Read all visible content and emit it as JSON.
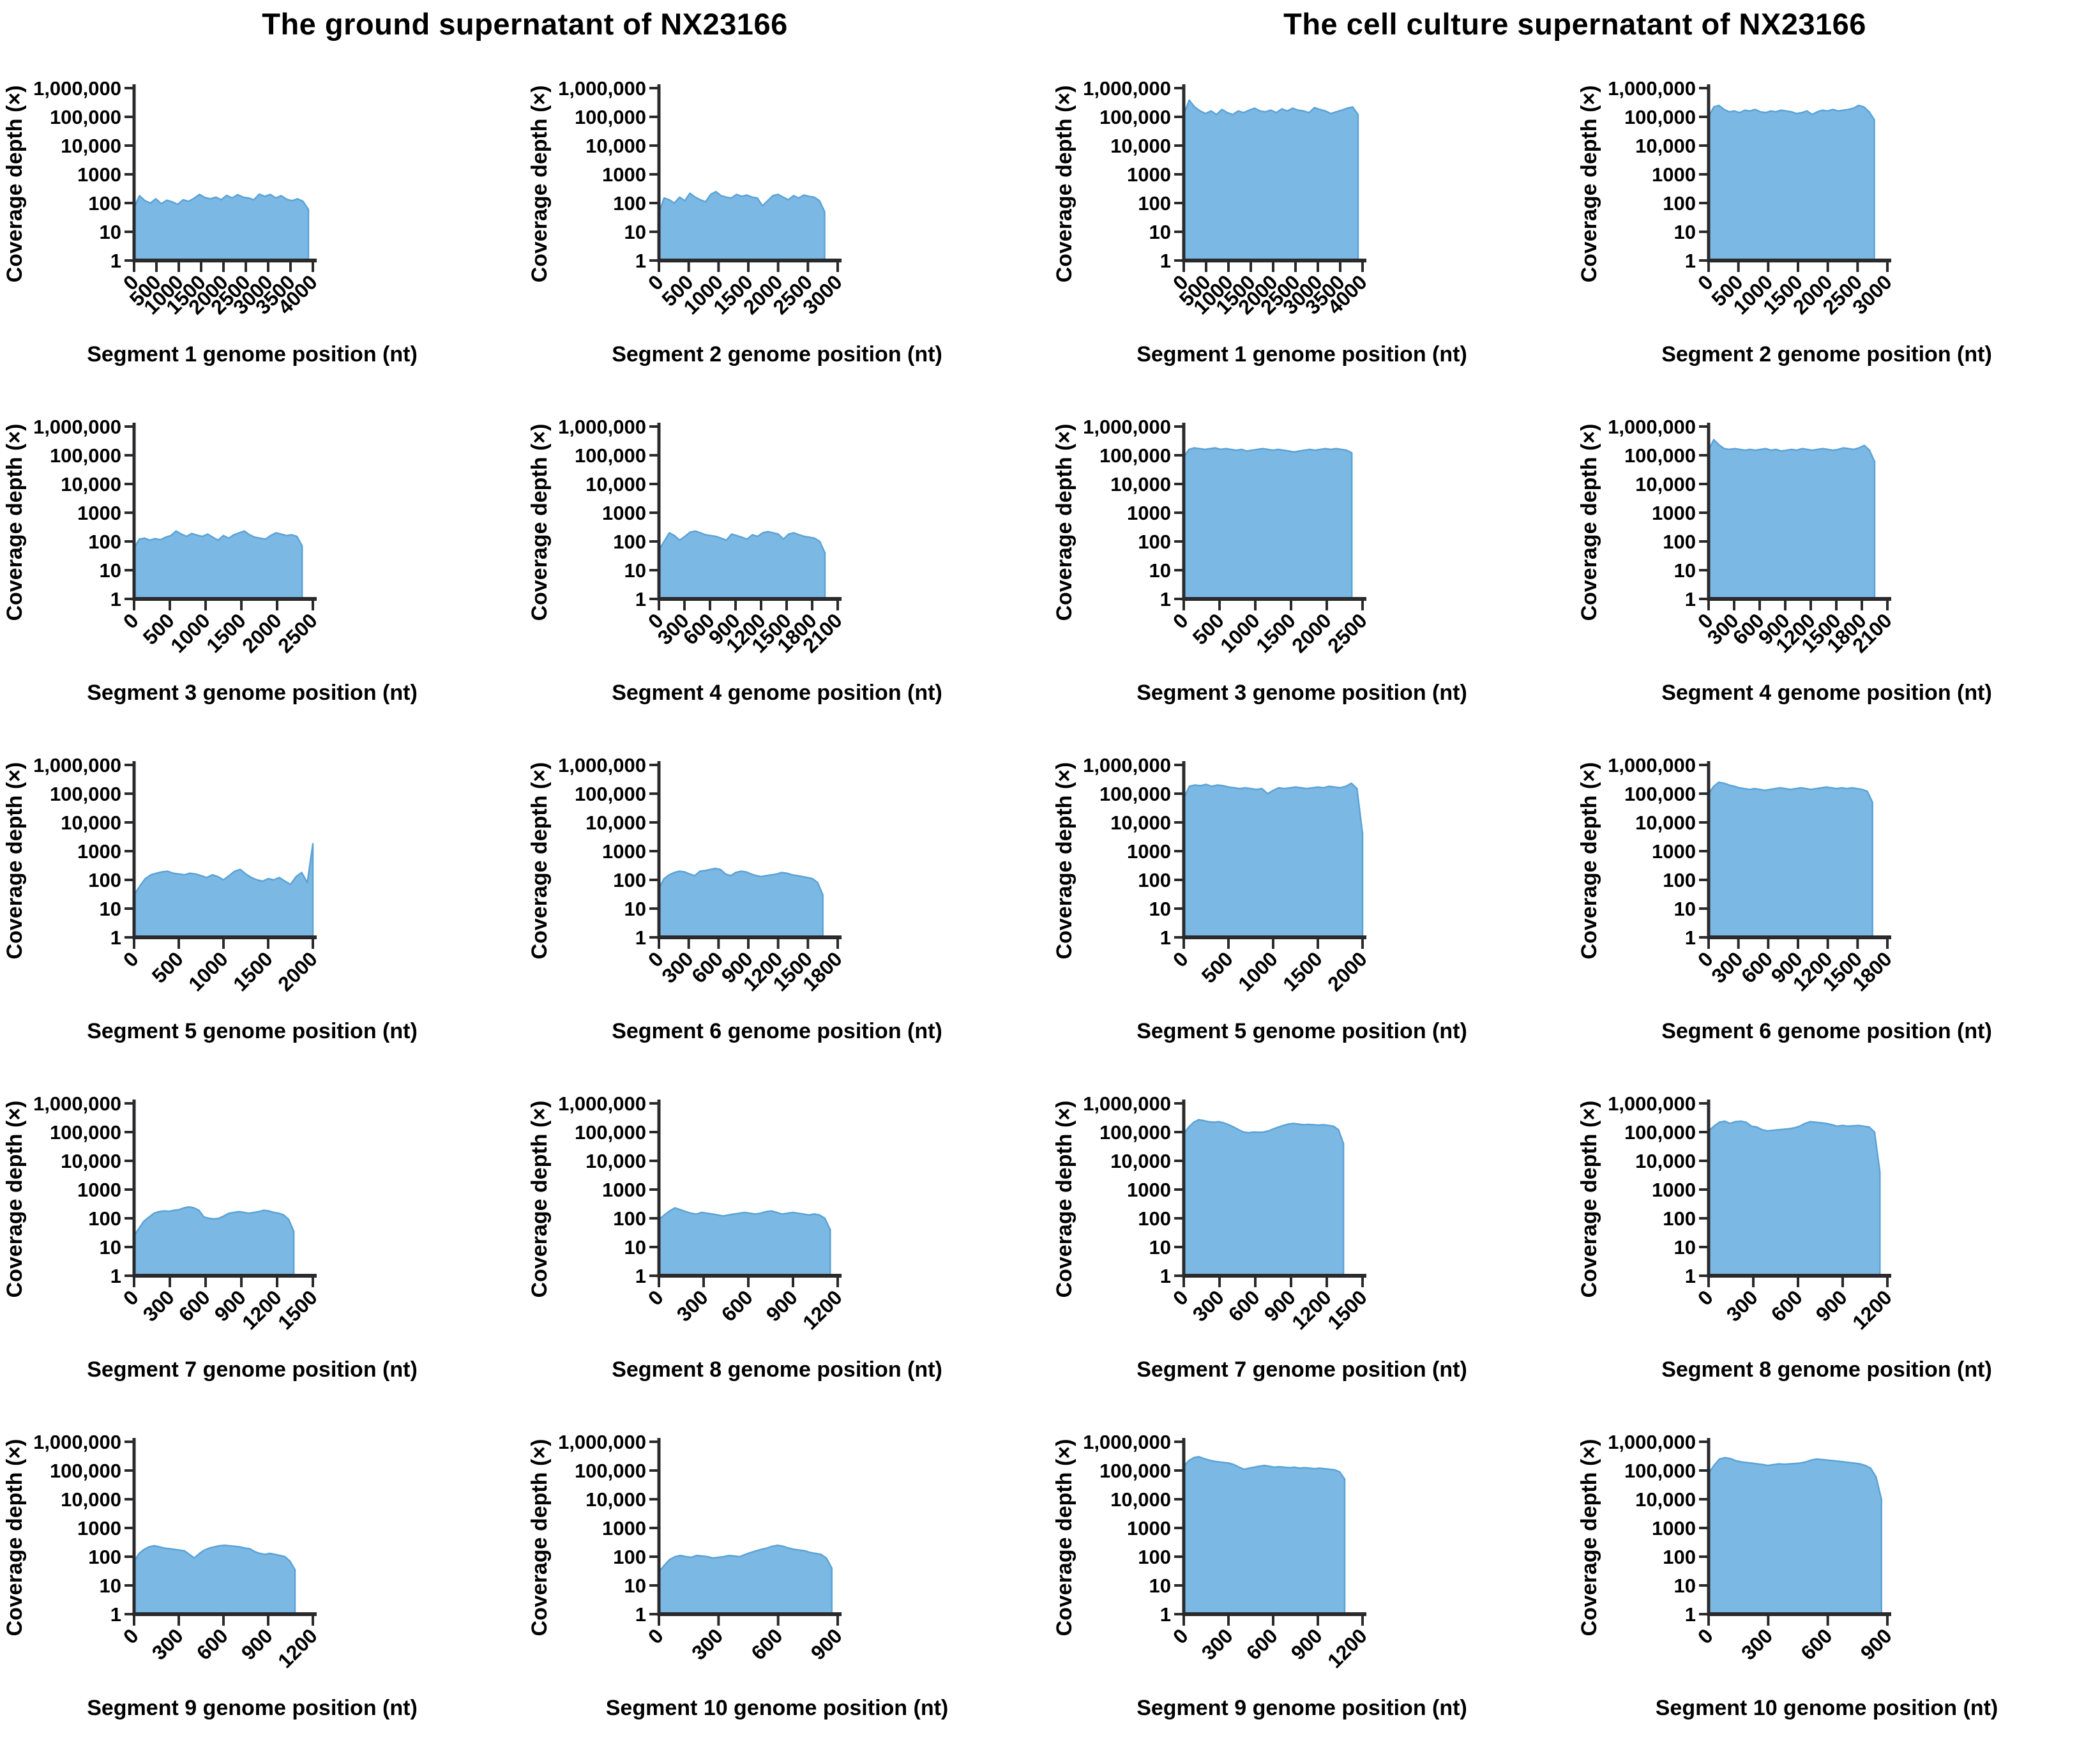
{
  "titles": {
    "left": "The ground supernatant of NX23166",
    "right": "The cell culture supernatant of NX23166"
  },
  "colors": {
    "area_fill": "#7cb8e4",
    "area_edge": "#5ba3d6",
    "axis": "#2a2a2c",
    "text": "#000000"
  },
  "y_axis": {
    "label": "Coverage depth (×)",
    "tick_labels": [
      "1,000,000",
      "100,000",
      "10,000",
      "1000",
      "100",
      "10",
      "1"
    ],
    "tick_values": [
      1000000,
      100000,
      10000,
      1000,
      100,
      10,
      1
    ],
    "scale": "log",
    "range": [
      1,
      1000000
    ]
  },
  "chart_data": [
    {
      "type": "area",
      "group": "ground",
      "segment": 1,
      "xlabel": "Segment 1 genome position (nt)",
      "xmax": 4000,
      "data_end": 3900,
      "xticks": [
        0,
        500,
        1000,
        1500,
        2000,
        2500,
        3000,
        3500,
        4000
      ],
      "values": [
        70,
        180,
        120,
        100,
        140,
        95,
        125,
        110,
        90,
        130,
        115,
        145,
        200,
        155,
        140,
        160,
        130,
        185,
        150,
        195,
        160,
        150,
        130,
        205,
        170,
        200,
        150,
        180,
        135,
        120,
        140,
        115,
        60
      ]
    },
    {
      "type": "area",
      "group": "ground",
      "segment": 2,
      "xlabel": "Segment 2 genome position (nt)",
      "xmax": 3000,
      "data_end": 2780,
      "xticks": [
        0,
        500,
        1000,
        1500,
        2000,
        2500,
        3000
      ],
      "values": [
        45,
        150,
        130,
        100,
        160,
        120,
        220,
        160,
        130,
        110,
        200,
        250,
        180,
        160,
        150,
        200,
        170,
        190,
        160,
        150,
        80,
        120,
        180,
        200,
        160,
        130,
        180,
        150,
        190,
        170,
        160,
        120,
        50
      ]
    },
    {
      "type": "area",
      "group": "cell_culture",
      "segment": 1,
      "xlabel": "Segment 1 genome position (nt)",
      "xmax": 4000,
      "data_end": 3900,
      "xticks": [
        0,
        500,
        1000,
        1500,
        2000,
        2500,
        3000,
        3500,
        4000
      ],
      "values": [
        120000,
        380000,
        220000,
        160000,
        130000,
        160000,
        120000,
        180000,
        140000,
        120000,
        160000,
        140000,
        170000,
        200000,
        160000,
        150000,
        170000,
        140000,
        190000,
        160000,
        200000,
        170000,
        160000,
        140000,
        210000,
        180000,
        160000,
        130000,
        150000,
        170000,
        200000,
        220000,
        120000
      ]
    },
    {
      "type": "area",
      "group": "cell_culture",
      "segment": 2,
      "xlabel": "Segment 2 genome position (nt)",
      "xmax": 3000,
      "data_end": 2780,
      "xticks": [
        0,
        500,
        1000,
        1500,
        2000,
        2500,
        3000
      ],
      "values": [
        100000,
        220000,
        250000,
        180000,
        150000,
        160000,
        140000,
        170000,
        160000,
        180000,
        150000,
        140000,
        160000,
        150000,
        170000,
        160000,
        150000,
        130000,
        140000,
        160000,
        120000,
        150000,
        170000,
        160000,
        180000,
        160000,
        170000,
        180000,
        200000,
        250000,
        220000,
        150000,
        80000
      ]
    },
    {
      "type": "area",
      "group": "ground",
      "segment": 3,
      "xlabel": "Segment 3 genome position (nt)",
      "xmax": 2500,
      "data_end": 2350,
      "xticks": [
        0,
        500,
        1000,
        1500,
        2000,
        2500
      ],
      "values": [
        60,
        120,
        130,
        110,
        125,
        115,
        140,
        160,
        230,
        180,
        150,
        190,
        165,
        150,
        180,
        140,
        110,
        160,
        130,
        170,
        200,
        230,
        170,
        140,
        130,
        120,
        160,
        200,
        180,
        160,
        170,
        150,
        70
      ]
    },
    {
      "type": "area",
      "group": "ground",
      "segment": 4,
      "xlabel": "Segment 4 genome position (nt)",
      "xmax": 2100,
      "data_end": 1950,
      "xticks": [
        0,
        300,
        600,
        900,
        1200,
        1500,
        1800,
        2100
      ],
      "values": [
        50,
        100,
        200,
        160,
        110,
        150,
        210,
        230,
        200,
        170,
        160,
        150,
        130,
        110,
        180,
        160,
        140,
        120,
        170,
        150,
        200,
        220,
        200,
        180,
        120,
        180,
        200,
        170,
        150,
        140,
        130,
        100,
        40
      ]
    },
    {
      "type": "area",
      "group": "cell_culture",
      "segment": 3,
      "xlabel": "Segment 3 genome position (nt)",
      "xmax": 2500,
      "data_end": 2350,
      "xticks": [
        0,
        500,
        1000,
        1500,
        2000,
        2500
      ],
      "values": [
        90000,
        160000,
        180000,
        170000,
        160000,
        170000,
        180000,
        160000,
        170000,
        160000,
        150000,
        160000,
        140000,
        150000,
        160000,
        170000,
        160000,
        150000,
        160000,
        150000,
        140000,
        130000,
        140000,
        150000,
        160000,
        150000,
        160000,
        170000,
        160000,
        170000,
        160000,
        150000,
        120000
      ]
    },
    {
      "type": "area",
      "group": "cell_culture",
      "segment": 4,
      "xlabel": "Segment 4 genome position (nt)",
      "xmax": 2100,
      "data_end": 1950,
      "xticks": [
        0,
        300,
        600,
        900,
        1200,
        1500,
        1800,
        2100
      ],
      "values": [
        150000,
        350000,
        230000,
        170000,
        160000,
        170000,
        160000,
        150000,
        160000,
        150000,
        160000,
        170000,
        150000,
        160000,
        140000,
        150000,
        160000,
        150000,
        170000,
        160000,
        150000,
        160000,
        170000,
        160000,
        150000,
        160000,
        180000,
        170000,
        160000,
        180000,
        220000,
        150000,
        60000
      ]
    },
    {
      "type": "area",
      "group": "ground",
      "segment": 5,
      "xlabel": "Segment 5 genome position (nt)",
      "xmax": 2000,
      "data_end": 2000,
      "xticks": [
        0,
        500,
        1000,
        1500,
        2000
      ],
      "values": [
        30,
        60,
        110,
        150,
        170,
        190,
        200,
        170,
        160,
        150,
        170,
        160,
        140,
        120,
        150,
        130,
        100,
        140,
        200,
        230,
        160,
        120,
        100,
        90,
        110,
        100,
        120,
        90,
        70,
        130,
        180,
        80,
        1800
      ]
    },
    {
      "type": "area",
      "group": "ground",
      "segment": 6,
      "xlabel": "Segment 6 genome position (nt)",
      "xmax": 1800,
      "data_end": 1650,
      "xticks": [
        0,
        300,
        600,
        900,
        1200,
        1500,
        1800
      ],
      "values": [
        50,
        110,
        150,
        180,
        200,
        190,
        160,
        140,
        200,
        210,
        230,
        250,
        230,
        160,
        140,
        180,
        200,
        190,
        160,
        140,
        130,
        140,
        150,
        160,
        180,
        170,
        150,
        140,
        130,
        120,
        110,
        80,
        30
      ]
    },
    {
      "type": "area",
      "group": "cell_culture",
      "segment": 5,
      "xlabel": "Segment 5 genome position (nt)",
      "xmax": 2000,
      "data_end": 2000,
      "xticks": [
        0,
        500,
        1000,
        1500,
        2000
      ],
      "values": [
        70000,
        180000,
        200000,
        190000,
        210000,
        180000,
        200000,
        190000,
        170000,
        160000,
        150000,
        160000,
        150000,
        140000,
        150000,
        100000,
        130000,
        160000,
        150000,
        160000,
        170000,
        160000,
        150000,
        160000,
        170000,
        160000,
        180000,
        170000,
        160000,
        180000,
        230000,
        150000,
        4000
      ]
    },
    {
      "type": "area",
      "group": "cell_culture",
      "segment": 6,
      "xlabel": "Segment 6 genome position (nt)",
      "xmax": 1800,
      "data_end": 1650,
      "xticks": [
        0,
        300,
        600,
        900,
        1200,
        1500,
        1800
      ],
      "values": [
        100000,
        180000,
        250000,
        230000,
        200000,
        180000,
        160000,
        150000,
        140000,
        150000,
        140000,
        130000,
        140000,
        150000,
        160000,
        150000,
        140000,
        150000,
        160000,
        150000,
        140000,
        150000,
        160000,
        170000,
        160000,
        150000,
        160000,
        150000,
        160000,
        150000,
        140000,
        120000,
        50000
      ]
    },
    {
      "type": "area",
      "group": "ground",
      "segment": 7,
      "xlabel": "Segment 7 genome position (nt)",
      "xmax": 1500,
      "data_end": 1340,
      "xticks": [
        0,
        300,
        600,
        900,
        1200,
        1500
      ],
      "values": [
        25,
        45,
        80,
        110,
        150,
        170,
        180,
        175,
        190,
        200,
        230,
        250,
        230,
        190,
        110,
        100,
        95,
        100,
        120,
        150,
        160,
        170,
        160,
        150,
        160,
        170,
        190,
        180,
        160,
        150,
        130,
        90,
        35
      ]
    },
    {
      "type": "area",
      "group": "ground",
      "segment": 8,
      "xlabel": "Segment 8 genome position (nt)",
      "xmax": 1200,
      "data_end": 1150,
      "xticks": [
        0,
        300,
        600,
        900,
        1200
      ],
      "values": [
        90,
        130,
        180,
        230,
        200,
        170,
        150,
        140,
        160,
        150,
        140,
        130,
        120,
        130,
        140,
        150,
        160,
        150,
        140,
        150,
        170,
        180,
        160,
        140,
        150,
        160,
        150,
        140,
        130,
        140,
        130,
        100,
        40
      ]
    },
    {
      "type": "area",
      "group": "cell_culture",
      "segment": 7,
      "xlabel": "Segment 7 genome position (nt)",
      "xmax": 1500,
      "data_end": 1340,
      "xticks": [
        0,
        300,
        600,
        900,
        1200,
        1500
      ],
      "values": [
        90000,
        150000,
        220000,
        270000,
        250000,
        230000,
        220000,
        230000,
        210000,
        180000,
        150000,
        120000,
        100000,
        95000,
        100000,
        98000,
        100000,
        110000,
        130000,
        150000,
        170000,
        190000,
        200000,
        190000,
        180000,
        185000,
        180000,
        175000,
        180000,
        170000,
        160000,
        120000,
        40000
      ]
    },
    {
      "type": "area",
      "group": "cell_culture",
      "segment": 8,
      "xlabel": "Segment 8 genome position (nt)",
      "xmax": 1200,
      "data_end": 1150,
      "xticks": [
        0,
        300,
        600,
        900,
        1200
      ],
      "values": [
        110000,
        160000,
        220000,
        240000,
        200000,
        230000,
        240000,
        220000,
        160000,
        150000,
        120000,
        110000,
        115000,
        120000,
        125000,
        130000,
        140000,
        160000,
        200000,
        230000,
        220000,
        210000,
        200000,
        180000,
        160000,
        170000,
        160000,
        165000,
        170000,
        160000,
        150000,
        100000,
        4000
      ]
    },
    {
      "type": "area",
      "group": "ground",
      "segment": 9,
      "xlabel": "Segment 9 genome position (nt)",
      "xmax": 1200,
      "data_end": 1080,
      "xticks": [
        0,
        300,
        600,
        900,
        1200
      ],
      "values": [
        70,
        130,
        180,
        220,
        240,
        220,
        200,
        190,
        180,
        170,
        160,
        120,
        90,
        130,
        170,
        200,
        220,
        240,
        250,
        240,
        230,
        220,
        200,
        190,
        150,
        130,
        120,
        130,
        120,
        110,
        100,
        70,
        35
      ]
    },
    {
      "type": "area",
      "group": "ground",
      "segment": 10,
      "xlabel": "Segment 10 genome position (nt)",
      "xmax": 900,
      "data_end": 870,
      "xticks": [
        0,
        300,
        600,
        900
      ],
      "values": [
        30,
        50,
        80,
        100,
        110,
        100,
        95,
        110,
        105,
        100,
        90,
        95,
        100,
        110,
        105,
        100,
        120,
        140,
        160,
        180,
        200,
        230,
        250,
        230,
        200,
        180,
        170,
        160,
        140,
        130,
        120,
        90,
        40
      ]
    },
    {
      "type": "area",
      "group": "cell_culture",
      "segment": 9,
      "xlabel": "Segment 9 genome position (nt)",
      "xmax": 1200,
      "data_end": 1080,
      "xticks": [
        0,
        300,
        600,
        900,
        1200
      ],
      "values": [
        140000,
        220000,
        280000,
        300000,
        260000,
        230000,
        210000,
        200000,
        190000,
        180000,
        160000,
        130000,
        110000,
        120000,
        130000,
        140000,
        150000,
        140000,
        130000,
        135000,
        130000,
        125000,
        130000,
        120000,
        125000,
        120000,
        115000,
        120000,
        115000,
        110000,
        105000,
        90000,
        50000
      ]
    },
    {
      "type": "area",
      "group": "cell_culture",
      "segment": 10,
      "xlabel": "Segment 10 genome position (nt)",
      "xmax": 900,
      "data_end": 870,
      "xticks": [
        0,
        300,
        600,
        900
      ],
      "values": [
        80000,
        150000,
        250000,
        280000,
        260000,
        220000,
        200000,
        190000,
        180000,
        170000,
        160000,
        150000,
        160000,
        170000,
        165000,
        170000,
        175000,
        180000,
        200000,
        230000,
        250000,
        240000,
        230000,
        220000,
        210000,
        200000,
        190000,
        180000,
        170000,
        150000,
        120000,
        60000,
        10000
      ]
    }
  ]
}
